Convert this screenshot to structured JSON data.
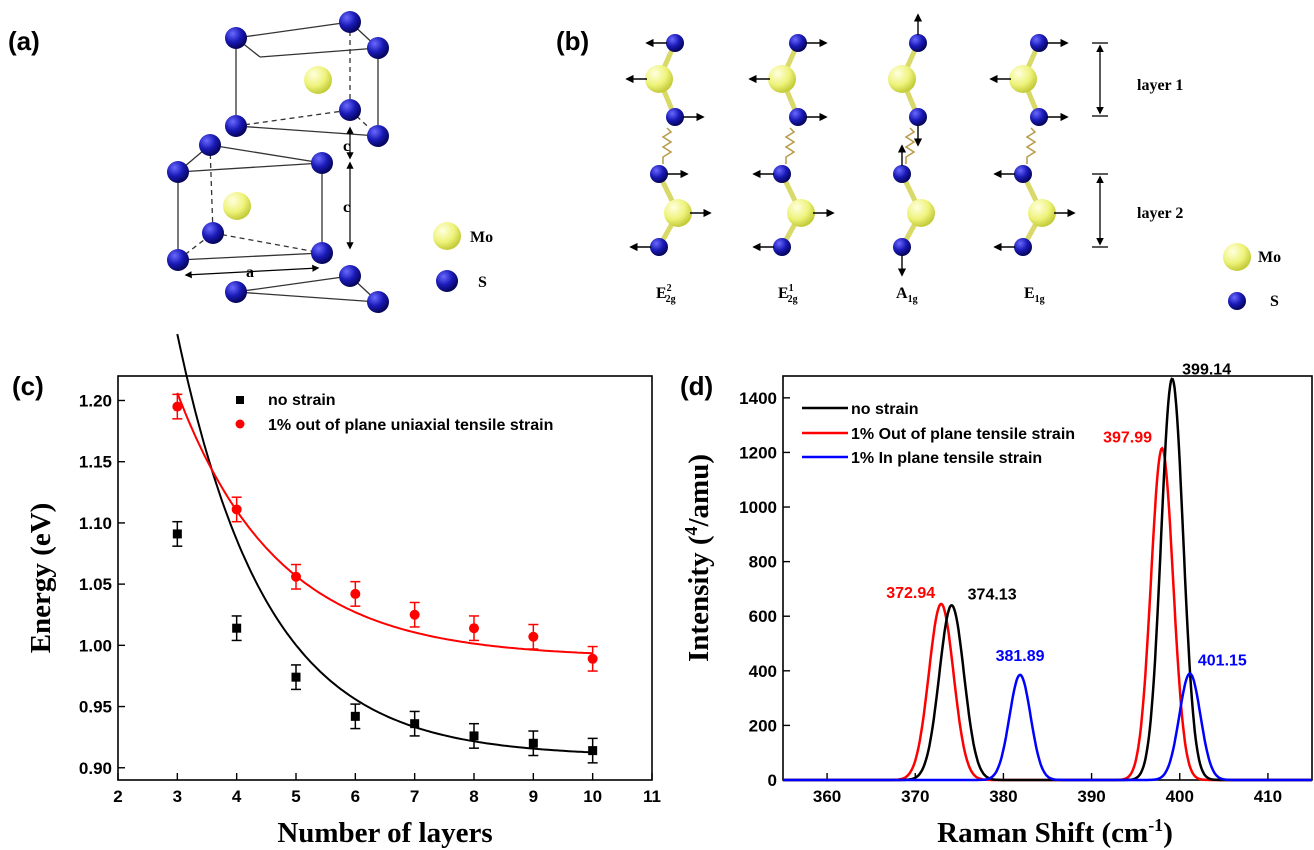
{
  "panel_a": {
    "label": "(a)",
    "dim_a": "a",
    "dim_c": "c",
    "dim_c_half": "c",
    "legend": [
      {
        "name": "Mo",
        "color": "#eef37a"
      },
      {
        "name": "S",
        "color": "#1a1ab8"
      }
    ]
  },
  "panel_b": {
    "label": "(b)",
    "modes": [
      "E",
      "E",
      "A",
      "E"
    ],
    "mode_sup": [
      "2",
      "1",
      "",
      ""
    ],
    "mode_sub": [
      "2g",
      "2g",
      "1g",
      "1g"
    ],
    "layer1": "layer 1",
    "layer2": "layer 2",
    "legend": [
      {
        "name": "Mo",
        "color": "#eef37a"
      },
      {
        "name": "S",
        "color": "#1a1ab8"
      }
    ]
  },
  "panel_c": {
    "label": "(c)",
    "xlabel": "Number of layers",
    "ylabel": "Energy (eV)"
  },
  "panel_d": {
    "label": "(d)",
    "xlabel": "Raman Shift (cm",
    "xlabel_sup": "-1",
    "xlabel_end": ")",
    "ylabel": "Intensity (",
    "ylabel_sup": "4",
    "ylabel_end": "/amu)"
  },
  "chart_data": [
    {
      "type": "scatter",
      "panel": "(c)",
      "xlabel": "Number of layers",
      "ylabel": "Energy (eV)",
      "xlim": [
        2,
        11
      ],
      "ylim": [
        0.89,
        1.22
      ],
      "xticks": [
        2,
        3,
        4,
        5,
        6,
        7,
        8,
        9,
        10,
        11
      ],
      "yticks": [
        0.9,
        0.95,
        1.0,
        1.05,
        1.1,
        1.15,
        1.2
      ],
      "legend_position": "top-center",
      "grid": false,
      "series": [
        {
          "name": "no strain",
          "color": "#000000",
          "marker": "square",
          "x": [
            3,
            4,
            5,
            6,
            7,
            8,
            9,
            10
          ],
          "y": [
            1.091,
            1.014,
            0.974,
            0.942,
            0.936,
            0.926,
            0.92,
            0.914
          ],
          "error": [
            0.01,
            0.01,
            0.01,
            0.01,
            0.01,
            0.01,
            0.01,
            0.01
          ],
          "fit": {
            "A": 0.9093,
            "B": 2.5485,
            "t": 1.5
          }
        },
        {
          "name": "1% out of plane uniaxial tensile strain",
          "color": "#ff0000",
          "marker": "circle",
          "x": [
            3,
            4,
            5,
            6,
            7,
            8,
            9,
            10
          ],
          "y": [
            1.195,
            1.111,
            1.056,
            1.042,
            1.025,
            1.014,
            1.007,
            0.989
          ],
          "error": [
            0.01,
            0.01,
            0.01,
            0.01,
            0.01,
            0.01,
            0.01,
            0.01
          ],
          "fit": {
            "A": 0.99,
            "B": 1.2624,
            "t": 1.7
          }
        }
      ]
    },
    {
      "type": "line",
      "panel": "(d)",
      "xlabel": "Raman Shift (cm-1)",
      "ylabel": "Intensity (4/amu)",
      "xlim": [
        355,
        415
      ],
      "ylim": [
        0,
        1480
      ],
      "xticks": [
        360,
        370,
        380,
        390,
        400,
        410
      ],
      "yticks": [
        0,
        200,
        400,
        600,
        800,
        1000,
        1200,
        1400
      ],
      "legend_position": "top-left",
      "grid": false,
      "series": [
        {
          "name": "no strain",
          "color": "#000000",
          "peaks": [
            {
              "center": 374.13,
              "height": 640,
              "sigma": 1.4
            },
            {
              "center": 399.14,
              "height": 1470,
              "sigma": 1.25
            }
          ]
        },
        {
          "name": "1% Out of plane tensile strain",
          "color": "#ff0000",
          "peaks": [
            {
              "center": 372.94,
              "height": 645,
              "sigma": 1.4
            },
            {
              "center": 397.99,
              "height": 1215,
              "sigma": 1.25
            }
          ]
        },
        {
          "name": "1%  In plane tensile strain",
          "color": "#0000ff",
          "peaks": [
            {
              "center": 381.89,
              "height": 385,
              "sigma": 1.2
            },
            {
              "center": 401.15,
              "height": 390,
              "sigma": 1.2
            }
          ]
        }
      ],
      "annotations": [
        {
          "text": "374.13",
          "color": "#000000",
          "x": 374.13,
          "y": 640
        },
        {
          "text": "372.94",
          "color": "#ff0000",
          "x": 372.94,
          "y": 645
        },
        {
          "text": "381.89",
          "color": "#0000ff",
          "x": 381.89,
          "y": 385
        },
        {
          "text": "399.14",
          "color": "#000000",
          "x": 399.14,
          "y": 1470
        },
        {
          "text": "397.99",
          "color": "#ff0000",
          "x": 397.99,
          "y": 1215
        },
        {
          "text": "401.15",
          "color": "#0000ff",
          "x": 401.15,
          "y": 390
        }
      ]
    }
  ]
}
